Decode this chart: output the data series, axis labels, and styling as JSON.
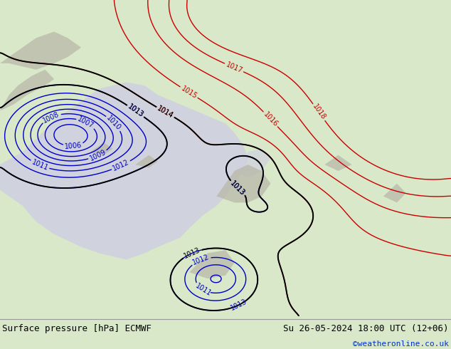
{
  "title_left": "Surface pressure [hPa] ECMWF",
  "title_right": "Su 26-05-2024 18:00 UTC (12+06)",
  "credit": "©weatheronline.co.uk",
  "bg_color": "#aad464",
  "ocean_color": "#d0d0e0",
  "footer_bg": "#d8e8c8",
  "blue_color": "#0000cc",
  "red_color": "#cc0000",
  "black_color": "#000000",
  "gray_color": "#888888",
  "figsize": [
    6.34,
    4.9
  ],
  "dpi": 100
}
